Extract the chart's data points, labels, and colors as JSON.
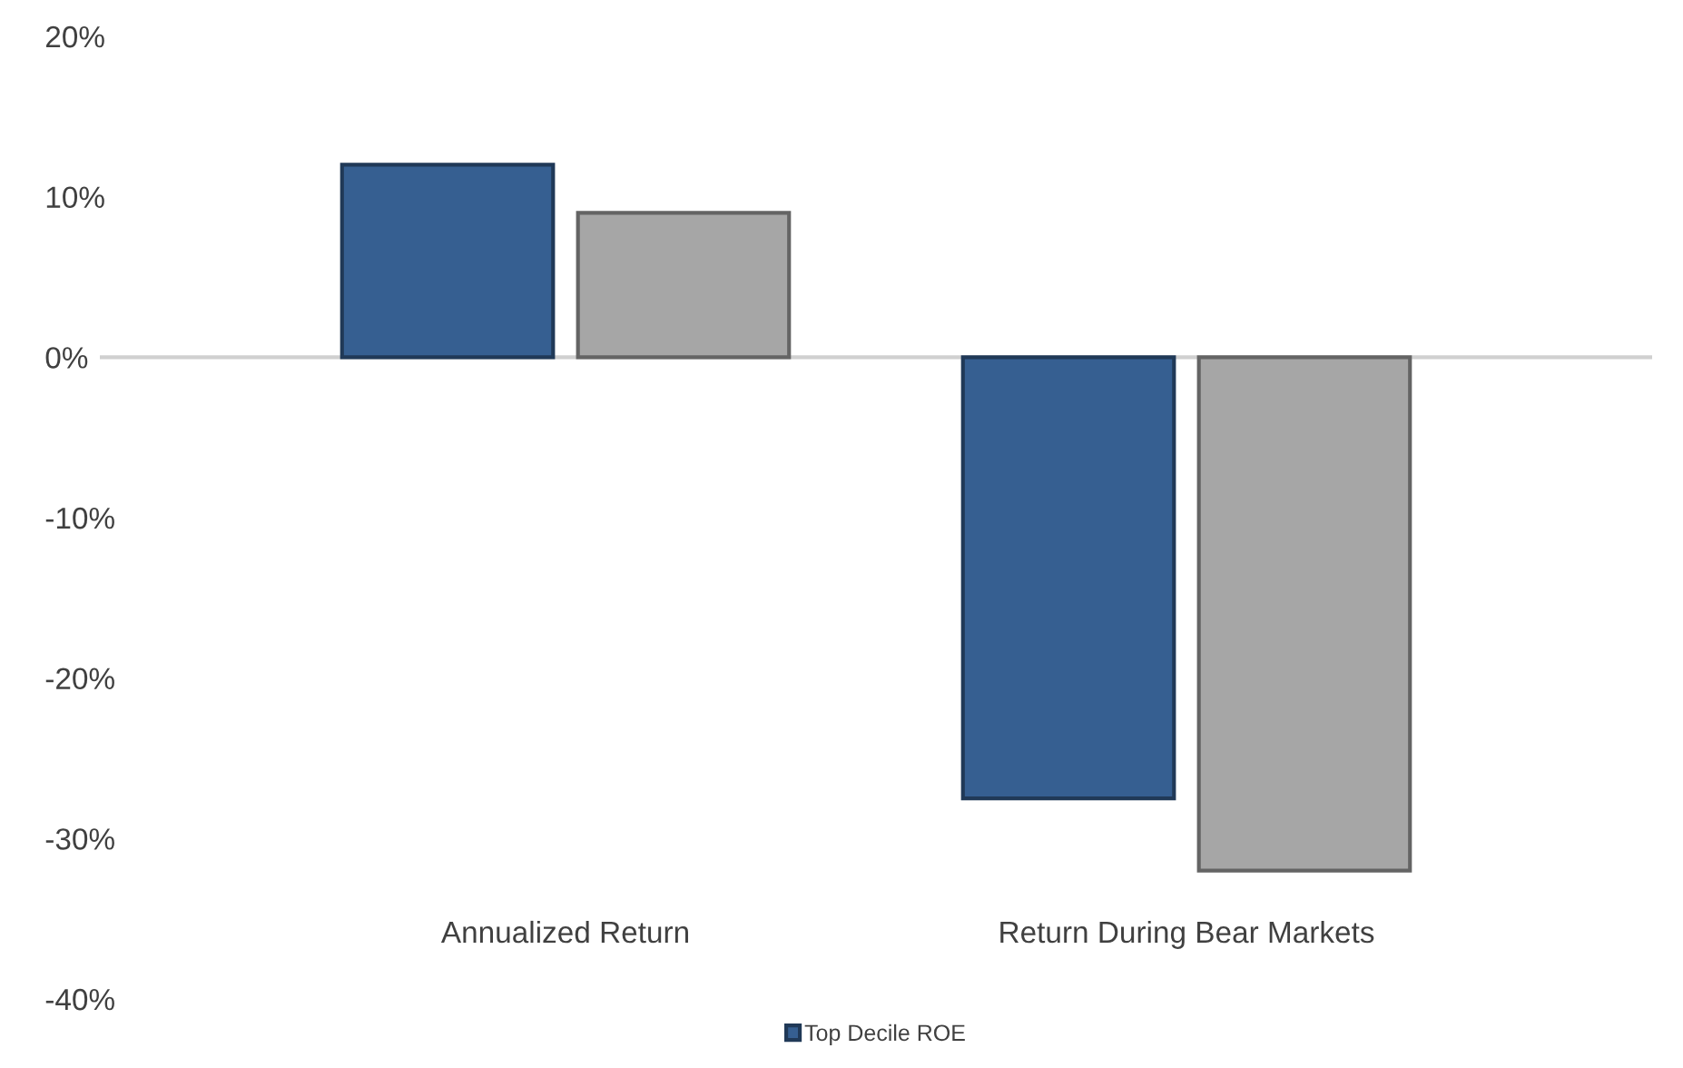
{
  "chart_data": {
    "type": "bar",
    "categories": [
      "Annualized Return",
      "Return During Bear Markets"
    ],
    "series": [
      {
        "name": "Top Decile ROE",
        "color": "#365f91",
        "values": [
          12,
          -27.5
        ]
      },
      {
        "color": "#a6a6a6",
        "values": [
          9,
          -32
        ]
      }
    ],
    "ylim": [
      -40,
      20
    ],
    "yticks": [
      {
        "value": -40,
        "label": "-40%"
      },
      {
        "value": -30,
        "label": "-30%"
      },
      {
        "value": -20,
        "label": "-20%"
      },
      {
        "value": -10,
        "label": "-10%"
      },
      {
        "value": 0,
        "label": "0%"
      },
      {
        "value": 10,
        "label": "10%"
      },
      {
        "value": 20,
        "label": "20%"
      }
    ],
    "ref_lines": [
      {
        "axis": "y",
        "value": 0,
        "color": "#d0d0d0"
      }
    ],
    "legend": "bottom"
  }
}
